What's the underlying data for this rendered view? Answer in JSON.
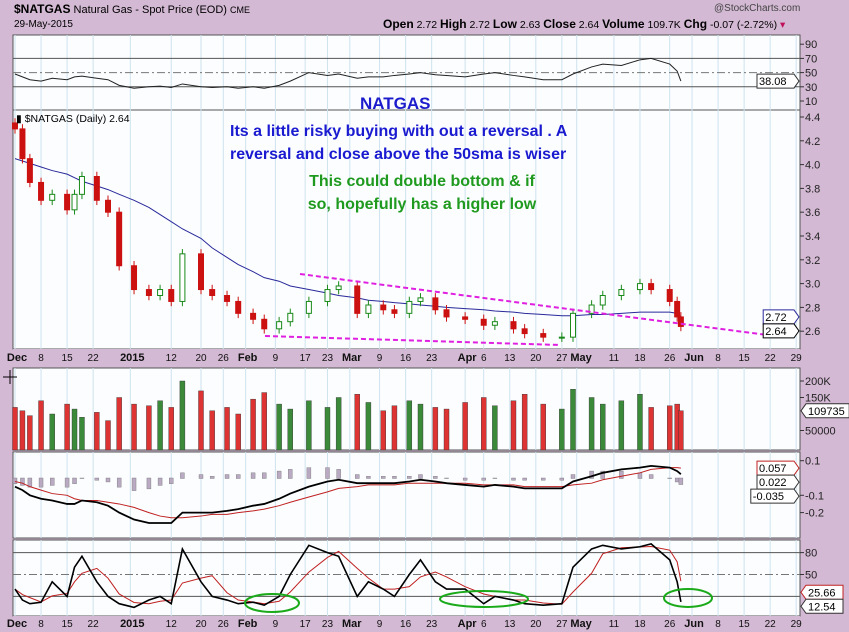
{
  "header": {
    "symbol": "$NATGAS",
    "description": "Natural Gas - Spot Price (EOD)",
    "exchange": "CME",
    "date": "29-May-2015",
    "brand": "@StockCharts.com",
    "open_label": "Open",
    "open": "2.72",
    "high_label": "High",
    "high": "2.72",
    "low_label": "Low",
    "low": "2.63",
    "close_label": "Close",
    "close": "2.64",
    "volume_label": "Volume",
    "volume": "109.7K",
    "chg_label": "Chg",
    "chg": "-0.07 (-2.72%)"
  },
  "annotations": {
    "title": "NATGAS",
    "line1": "Its a little risky buying with out a reversal . A",
    "line2": "reversal and close above the 50sma is wiser",
    "line3": "This could double bottom & if",
    "line4": "so, hopefully has a higher low",
    "title_color": "#1c1ccc",
    "blue_color": "#1a1ad0",
    "green_color": "#1f9a1f",
    "trendline_color": "#e020e0"
  },
  "chart_data": [
    {
      "type": "line",
      "panel": "rsi",
      "yticks": [
        "90",
        "70",
        "50",
        "30",
        "10"
      ],
      "ylim": [
        10,
        90
      ],
      "last_label": "38.08",
      "values": [
        48,
        44,
        40,
        38,
        42,
        40,
        44,
        45,
        42,
        40,
        32,
        28,
        30,
        31,
        29,
        34,
        30,
        29,
        30,
        28,
        30,
        28,
        32,
        38,
        50,
        46,
        48,
        42,
        44,
        44,
        46,
        48,
        50,
        47,
        46,
        44,
        48,
        50,
        46,
        44,
        40,
        40,
        48,
        58,
        62,
        60,
        68,
        70,
        62,
        52,
        38.08
      ]
    },
    {
      "type": "candlestick",
      "panel": "price",
      "legend": "$NATGAS (Daily) 2.64",
      "yticks": [
        "4.4",
        "4.2",
        "4.0",
        "3.8",
        "3.6",
        "3.4",
        "3.2",
        "3.0",
        "2.8",
        "2.6"
      ],
      "ylim": [
        2.6,
        4.4
      ],
      "last_labels": [
        "2.72",
        "2.64"
      ],
      "dates": [
        "2014-12-01",
        "2014-12-03",
        "2014-12-05",
        "2014-12-08",
        "2014-12-11",
        "2014-12-15",
        "2014-12-17",
        "2014-12-19",
        "2014-12-23",
        "2014-12-26",
        "2014-12-29",
        "2015-01-02",
        "2015-01-06",
        "2015-01-09",
        "2015-01-12",
        "2015-01-15",
        "2015-01-20",
        "2015-01-23",
        "2015-01-27",
        "2015-01-30",
        "2015-02-03",
        "2015-02-06",
        "2015-02-10",
        "2015-02-13",
        "2015-02-18",
        "2015-02-23",
        "2015-02-26",
        "2015-03-03",
        "2015-03-06",
        "2015-03-10",
        "2015-03-13",
        "2015-03-17",
        "2015-03-20",
        "2015-03-24",
        "2015-03-27",
        "2015-04-01",
        "2015-04-06",
        "2015-04-09",
        "2015-04-14",
        "2015-04-17",
        "2015-04-22",
        "2015-04-27",
        "2015-04-30",
        "2015-05-05",
        "2015-05-08",
        "2015-05-13",
        "2015-05-18",
        "2015-05-21",
        "2015-05-26",
        "2015-05-28",
        "2015-05-29"
      ],
      "close": [
        4.3,
        4.05,
        3.85,
        3.7,
        3.75,
        3.62,
        3.75,
        3.9,
        3.7,
        3.6,
        3.15,
        2.95,
        2.9,
        2.95,
        2.85,
        3.25,
        2.95,
        2.9,
        2.85,
        2.75,
        2.7,
        2.62,
        2.68,
        2.75,
        2.85,
        2.95,
        2.98,
        2.75,
        2.82,
        2.78,
        2.75,
        2.85,
        2.88,
        2.78,
        2.72,
        2.7,
        2.65,
        2.68,
        2.62,
        2.58,
        2.55,
        2.55,
        2.75,
        2.82,
        2.9,
        2.95,
        3.0,
        2.95,
        2.85,
        2.72,
        2.64
      ],
      "sma50": [
        4.05,
        4.03,
        4.01,
        3.98,
        3.95,
        3.92,
        3.89,
        3.86,
        3.82,
        3.79,
        3.75,
        3.7,
        3.64,
        3.58,
        3.52,
        3.46,
        3.38,
        3.3,
        3.22,
        3.16,
        3.1,
        3.05,
        3.02,
        2.98,
        2.95,
        2.92,
        2.9,
        2.88,
        2.86,
        2.85,
        2.84,
        2.83,
        2.82,
        2.81,
        2.8,
        2.79,
        2.78,
        2.77,
        2.76,
        2.75,
        2.74,
        2.73,
        2.73,
        2.74,
        2.74,
        2.75,
        2.76,
        2.76,
        2.76,
        2.75,
        2.72
      ]
    },
    {
      "type": "bar",
      "panel": "volume",
      "yticks": [
        "200K",
        "150K",
        "50000"
      ],
      "last_label": "109735",
      "values_k": [
        120,
        110,
        95,
        140,
        100,
        130,
        115,
        90,
        105,
        80,
        150,
        130,
        125,
        140,
        120,
        200,
        170,
        110,
        120,
        100,
        145,
        165,
        130,
        115,
        140,
        120,
        150,
        160,
        135,
        110,
        125,
        140,
        130,
        120,
        115,
        135,
        150,
        125,
        140,
        160,
        130,
        115,
        175,
        150,
        130,
        140,
        160,
        120,
        125,
        130,
        109.7
      ]
    },
    {
      "type": "line",
      "panel": "macd",
      "yticks": [
        "0.1",
        "-0.1",
        "-0.2"
      ],
      "last_labels": [
        "0.057",
        "0.022",
        "-0.035"
      ],
      "macd": [
        -0.05,
        -0.07,
        -0.1,
        -0.12,
        -0.13,
        -0.15,
        -0.15,
        -0.13,
        -0.14,
        -0.16,
        -0.2,
        -0.24,
        -0.26,
        -0.26,
        -0.26,
        -0.2,
        -0.2,
        -0.2,
        -0.19,
        -0.18,
        -0.16,
        -0.15,
        -0.12,
        -0.09,
        -0.05,
        -0.02,
        -0.01,
        -0.03,
        -0.03,
        -0.03,
        -0.03,
        -0.02,
        -0.01,
        -0.02,
        -0.03,
        -0.04,
        -0.05,
        -0.04,
        -0.05,
        -0.06,
        -0.06,
        -0.06,
        -0.02,
        0.01,
        0.03,
        0.05,
        0.06,
        0.07,
        0.06,
        0.04,
        0.022
      ],
      "signal": [
        -0.02,
        -0.03,
        -0.05,
        -0.07,
        -0.09,
        -0.1,
        -0.12,
        -0.13,
        -0.13,
        -0.14,
        -0.15,
        -0.17,
        -0.2,
        -0.22,
        -0.23,
        -0.23,
        -0.22,
        -0.21,
        -0.21,
        -0.2,
        -0.19,
        -0.18,
        -0.16,
        -0.14,
        -0.11,
        -0.08,
        -0.06,
        -0.05,
        -0.04,
        -0.04,
        -0.04,
        -0.03,
        -0.03,
        -0.03,
        -0.03,
        -0.03,
        -0.04,
        -0.04,
        -0.04,
        -0.05,
        -0.05,
        -0.05,
        -0.04,
        -0.03,
        -0.01,
        0.01,
        0.03,
        0.05,
        0.06,
        0.06,
        0.057
      ]
    },
    {
      "type": "line",
      "panel": "stochastic",
      "yticks": [
        "80",
        "50"
      ],
      "last_labels": [
        "25.66",
        "12.54"
      ],
      "k": [
        30,
        15,
        10,
        12,
        40,
        20,
        60,
        75,
        40,
        20,
        10,
        5,
        15,
        20,
        10,
        85,
        40,
        20,
        15,
        10,
        12,
        8,
        20,
        50,
        90,
        80,
        75,
        20,
        40,
        30,
        20,
        50,
        70,
        40,
        30,
        30,
        10,
        20,
        15,
        10,
        8,
        10,
        60,
        85,
        90,
        85,
        88,
        92,
        70,
        40,
        12.54
      ]
    }
  ],
  "xaxis": {
    "labels": [
      "Dec",
      "8",
      "15",
      "22",
      "2015",
      "12",
      "20",
      "26",
      "Feb",
      "9",
      "17",
      "23",
      "Mar",
      "9",
      "16",
      "23",
      "Apr",
      "6",
      "13",
      "20",
      "27",
      "May",
      "11",
      "18",
      "26",
      "Jun",
      "8",
      "15",
      "22",
      "29"
    ]
  }
}
